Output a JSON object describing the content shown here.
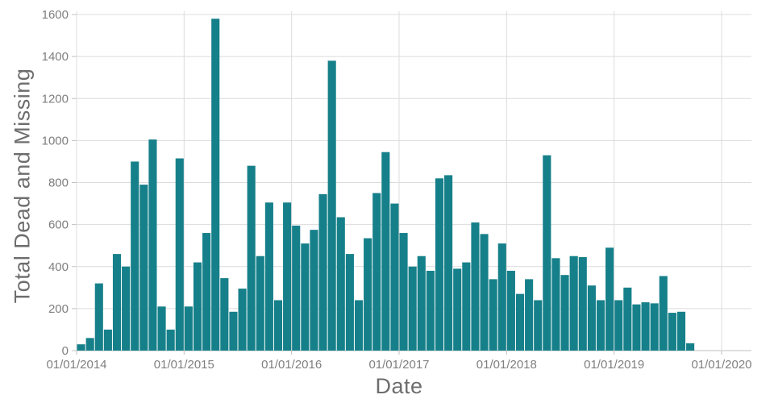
{
  "chart_data": {
    "type": "bar",
    "title": "",
    "xlabel": "Date",
    "ylabel": "Total Dead and Missing",
    "x_tick_labels": [
      "01/01/2014",
      "01/01/2015",
      "01/01/2016",
      "01/01/2017",
      "01/01/2018",
      "01/01/2019",
      "01/01/2020"
    ],
    "y_ticks": [
      0,
      200,
      400,
      600,
      800,
      1000,
      1200,
      1400,
      1600
    ],
    "ylim": [
      0,
      1600
    ],
    "x_range_months": 72,
    "series_start_month": "01/2014",
    "grid": true,
    "legend_position": "none",
    "values": [
      30,
      60,
      320,
      100,
      460,
      400,
      900,
      790,
      1005,
      210,
      100,
      915,
      210,
      420,
      560,
      1580,
      345,
      185,
      295,
      880,
      450,
      705,
      240,
      705,
      595,
      510,
      575,
      745,
      1380,
      635,
      460,
      240,
      535,
      750,
      945,
      700,
      560,
      400,
      450,
      380,
      820,
      835,
      390,
      420,
      610,
      555,
      340,
      510,
      380,
      270,
      340,
      240,
      930,
      440,
      360,
      450,
      445,
      310,
      240,
      490,
      240,
      300,
      220,
      230,
      225,
      355,
      180,
      185,
      35
    ]
  },
  "colors": {
    "bar": "#16808A",
    "grid": "#dcdcdc",
    "axis_line": "#c0c0c0",
    "tick_label": "#7f7f7f",
    "axis_title": "#6d6d6d",
    "background": "#ffffff"
  }
}
